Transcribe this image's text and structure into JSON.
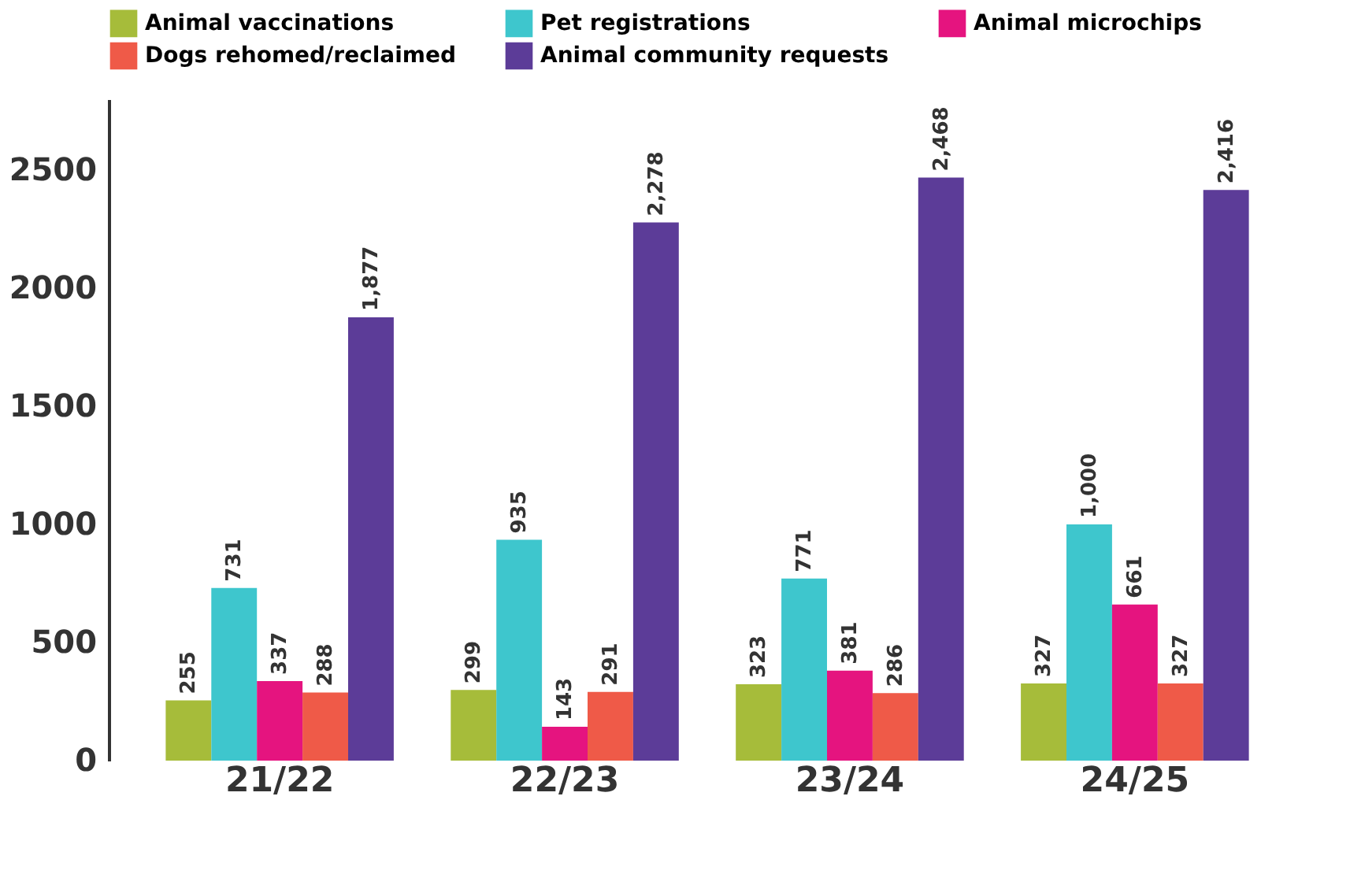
{
  "chart_data": {
    "type": "bar",
    "categories": [
      "21/22",
      "22/23",
      "23/24",
      "24/25"
    ],
    "series": [
      {
        "name": "Animal vaccinations",
        "color": "#a6bc3a",
        "values": [
          255,
          299,
          323,
          327
        ],
        "value_labels": [
          "255",
          "299",
          "323",
          "327"
        ]
      },
      {
        "name": "Pet registrations",
        "color": "#3ec6cd",
        "values": [
          731,
          935,
          771,
          1000
        ],
        "value_labels": [
          "731",
          "935",
          "771",
          "1,000"
        ]
      },
      {
        "name": "Animal microchips",
        "color": "#e5147f",
        "values": [
          337,
          143,
          381,
          661
        ],
        "value_labels": [
          "337",
          "143",
          "381",
          "661"
        ]
      },
      {
        "name": "Dogs rehomed/reclaimed",
        "color": "#ef5a48",
        "values": [
          288,
          291,
          286,
          327
        ],
        "value_labels": [
          "288",
          "291",
          "286",
          "327"
        ]
      },
      {
        "name": "Animal community requests",
        "color": "#5c3c98",
        "values": [
          1877,
          2278,
          2468,
          2416
        ],
        "value_labels": [
          "1,877",
          "2,278",
          "2,468",
          "2,416"
        ]
      }
    ],
    "ylim": [
      0,
      2800
    ],
    "yticks": [
      0,
      500,
      1000,
      1500,
      2000,
      2500
    ],
    "grid": false,
    "legend": "top"
  }
}
